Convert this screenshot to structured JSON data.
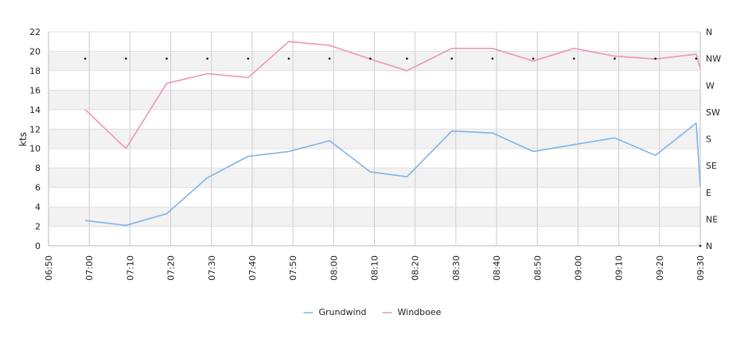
{
  "chart_data": {
    "type": "line",
    "title": "",
    "xlabel": "",
    "ylabel": "kts",
    "ylim": [
      0,
      22
    ],
    "y_ticks": [
      "0",
      "2",
      "4",
      "6",
      "8",
      "10",
      "12",
      "14",
      "16",
      "18",
      "20",
      "22"
    ],
    "x_ticks": [
      "06:50",
      "07:00",
      "07:10",
      "07:20",
      "07:30",
      "07:40",
      "07:50",
      "08:00",
      "08:10",
      "08:20",
      "08:30",
      "08:40",
      "08:50",
      "09:00",
      "09:10",
      "09:20",
      "09:30"
    ],
    "xlim": [
      "06:50",
      "09:30"
    ],
    "y2_ticks": [
      "N",
      "NE",
      "E",
      "SE",
      "S",
      "SW",
      "W",
      "NW",
      "N"
    ],
    "y2lim": [
      0,
      360
    ],
    "grid": true,
    "alternating_bands": true,
    "legend_position": "bottom-center",
    "series": [
      {
        "name": "Grundwind",
        "color": "#7fb3e8",
        "x": [
          "06:59",
          "07:09",
          "07:19",
          "07:29",
          "07:39",
          "07:49",
          "07:59",
          "08:09",
          "08:18",
          "08:29",
          "08:39",
          "08:49",
          "08:59",
          "09:09",
          "09:19",
          "09:29",
          "09:30"
        ],
        "values": [
          2.6,
          2.1,
          3.3,
          7.0,
          9.2,
          9.7,
          10.8,
          7.6,
          7.1,
          11.8,
          11.6,
          9.7,
          10.4,
          11.1,
          9.3,
          12.6,
          6.1
        ]
      },
      {
        "name": "Windboee",
        "color": "#ef93be",
        "x": [
          "06:59",
          "07:09",
          "07:19",
          "07:29",
          "07:39",
          "07:49",
          "07:59",
          "08:09",
          "08:18",
          "08:29",
          "08:39",
          "08:49",
          "08:59",
          "09:09",
          "09:19",
          "09:29",
          "09:30"
        ],
        "values": [
          14.0,
          10.0,
          16.7,
          17.7,
          17.3,
          21.0,
          20.6,
          19.2,
          18.0,
          20.3,
          20.3,
          19.0,
          20.3,
          19.5,
          19.2,
          19.7,
          18.2
        ]
      }
    ],
    "direction_markers": {
      "x": [
        "06:59",
        "07:09",
        "07:19",
        "07:29",
        "07:39",
        "07:49",
        "07:59",
        "08:09",
        "08:18",
        "08:29",
        "08:39",
        "08:49",
        "08:59",
        "09:09",
        "09:19",
        "09:29",
        "09:30"
      ],
      "directions_deg": [
        315,
        315,
        315,
        315,
        315,
        315,
        315,
        315,
        315,
        315,
        315,
        315,
        315,
        315,
        315,
        315,
        0
      ]
    }
  }
}
